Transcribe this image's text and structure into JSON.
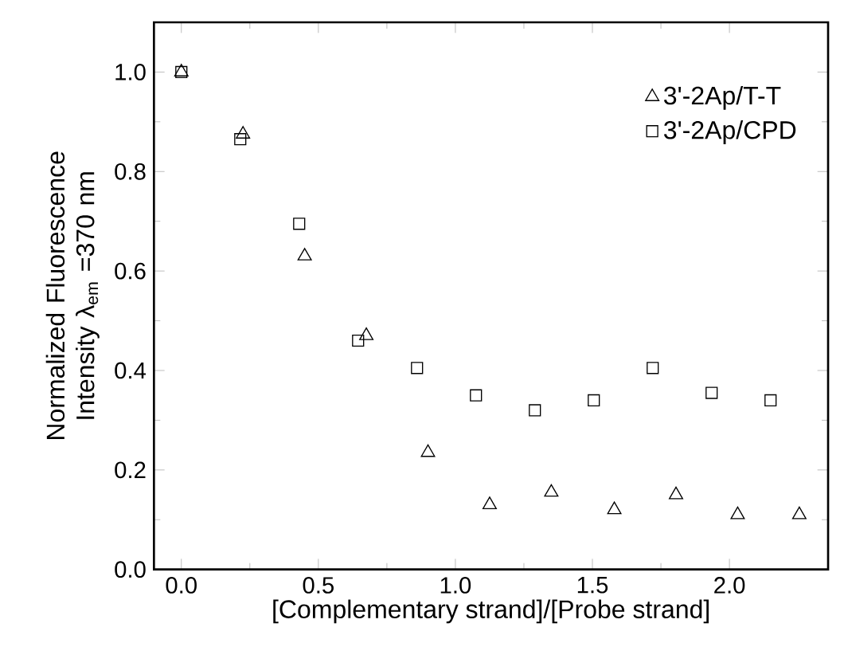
{
  "chart_data": {
    "type": "scatter",
    "xlabel": "[Complementary strand]/[Probe strand]",
    "ylabel": "Normalized Fluorescence Intensity λ$_{em}$ =370 nm",
    "series": [
      {
        "name": "3'-2Ap/T-T",
        "color": "#000000",
        "marker": "triangle",
        "x": [
          0,
          0.225,
          0.45,
          0.675,
          0.9,
          1.125,
          1.35,
          1.58,
          1.805,
          2.03,
          2.255
        ],
        "values": [
          1.0,
          0.875,
          0.63,
          0.47,
          0.235,
          0.13,
          0.155,
          0.12,
          0.15,
          0.11,
          0.11
        ]
      },
      {
        "name": "3'-2Ap/CPD",
        "color": "#000000",
        "marker": "square",
        "x": [
          0,
          0.215,
          0.43,
          0.645,
          0.86,
          1.075,
          1.29,
          1.505,
          1.72,
          1.935,
          2.15
        ],
        "values": [
          1.0,
          0.865,
          0.695,
          0.46,
          0.405,
          0.35,
          0.32,
          0.34,
          0.405,
          0.355,
          0.34
        ]
      }
    ],
    "xlim": [
      -0.1,
      2.36
    ],
    "ylim": [
      0,
      1.1
    ],
    "xticks": [
      {
        "value": 0,
        "label": "0.0"
      },
      0.5,
      {
        "value": 1,
        "label": "1.0"
      },
      1.5,
      {
        "value": 2,
        "label": "2.0"
      }
    ],
    "yticks": [
      {
        "value": 0,
        "label": "0.0"
      },
      0.2,
      0.4,
      0.6,
      0.8,
      {
        "value": 1,
        "label": "1.0"
      }
    ],
    "legend": "top right",
    "grid": false
  }
}
